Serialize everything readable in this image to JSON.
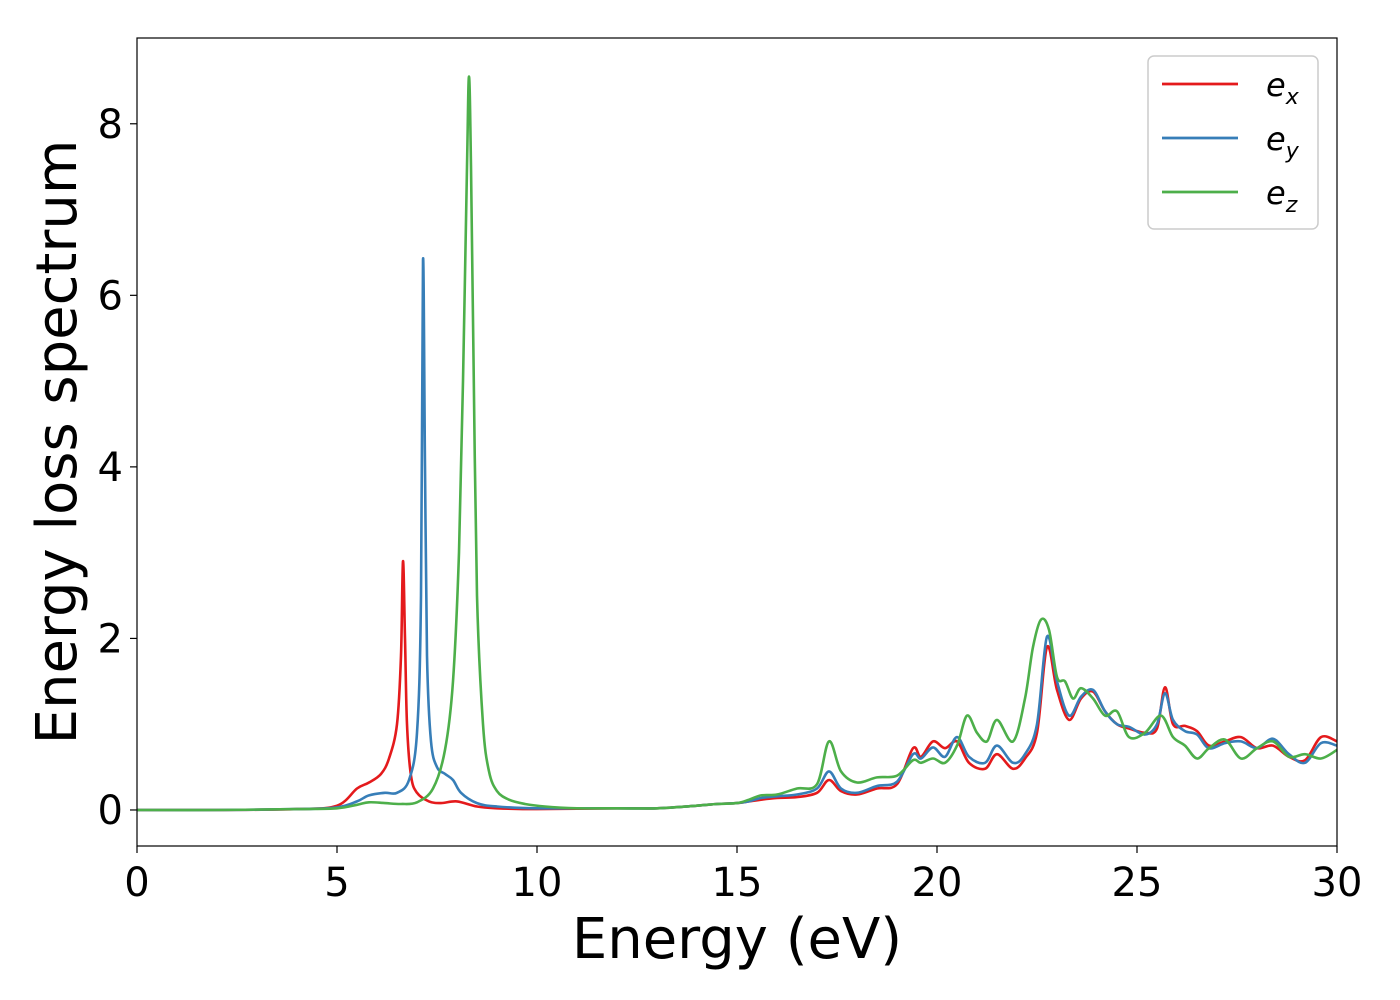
{
  "chart_data": {
    "type": "line",
    "title": "",
    "xlabel": "Energy (eV)",
    "ylabel": "Energy loss spectrum",
    "xlim": [
      0,
      30
    ],
    "ylim": [
      -0.42,
      9.0
    ],
    "xticks": [
      0,
      5,
      10,
      15,
      20,
      25,
      30
    ],
    "xtick_labels": [
      "0",
      "5",
      "10",
      "15",
      "20",
      "25",
      "30"
    ],
    "yticks": [
      0,
      2,
      4,
      6,
      8
    ],
    "ytick_labels": [
      "0",
      "2",
      "4",
      "6",
      "8"
    ],
    "grid": false,
    "legend_position": "top-right",
    "series": [
      {
        "name": "e_x",
        "base": "e",
        "sub": "x",
        "color": "#e41a1c",
        "x": [
          0,
          2,
          4,
          5,
          5.5,
          5.8,
          6.1,
          6.3,
          6.5,
          6.6,
          6.65,
          6.7,
          6.75,
          6.85,
          7.0,
          7.3,
          7.6,
          8.0,
          8.5,
          9.0,
          10,
          12,
          13,
          14,
          14.5,
          15,
          15.3,
          15.6,
          16,
          16.5,
          17,
          17.3,
          17.6,
          18,
          18.5,
          19,
          19.4,
          19.6,
          19.9,
          20.2,
          20.5,
          20.8,
          21.2,
          21.5,
          21.9,
          22.2,
          22.5,
          22.75,
          23.0,
          23.3,
          23.6,
          23.9,
          24.2,
          24.5,
          24.8,
          25.2,
          25.5,
          25.7,
          25.9,
          26.2,
          26.5,
          26.8,
          27.2,
          27.6,
          28.0,
          28.4,
          28.8,
          29.2,
          29.6,
          30
        ],
        "y": [
          0.0,
          0.0,
          0.01,
          0.05,
          0.25,
          0.32,
          0.42,
          0.6,
          1.0,
          1.8,
          2.9,
          2.0,
          1.0,
          0.4,
          0.2,
          0.1,
          0.08,
          0.1,
          0.04,
          0.02,
          0.01,
          0.02,
          0.02,
          0.05,
          0.07,
          0.08,
          0.1,
          0.12,
          0.14,
          0.15,
          0.2,
          0.35,
          0.22,
          0.18,
          0.25,
          0.3,
          0.72,
          0.62,
          0.8,
          0.72,
          0.8,
          0.55,
          0.48,
          0.65,
          0.48,
          0.6,
          0.9,
          1.9,
          1.4,
          1.05,
          1.3,
          1.38,
          1.15,
          1.0,
          0.95,
          0.9,
          0.95,
          1.43,
          1.0,
          0.98,
          0.92,
          0.75,
          0.8,
          0.85,
          0.72,
          0.75,
          0.62,
          0.58,
          0.85,
          0.8
        ]
      },
      {
        "name": "e_y",
        "base": "e",
        "sub": "y",
        "color": "#377eb8",
        "x": [
          0,
          2,
          4,
          5,
          5.5,
          5.8,
          6.2,
          6.5,
          6.8,
          7.0,
          7.1,
          7.15,
          7.2,
          7.25,
          7.35,
          7.5,
          7.7,
          7.9,
          8.1,
          8.5,
          9.0,
          10,
          12,
          13,
          14,
          14.5,
          15,
          15.3,
          15.6,
          16,
          16.5,
          17,
          17.3,
          17.6,
          18,
          18.5,
          19,
          19.4,
          19.6,
          19.9,
          20.2,
          20.5,
          20.8,
          21.2,
          21.5,
          21.9,
          22.2,
          22.5,
          22.75,
          23.0,
          23.3,
          23.6,
          23.9,
          24.2,
          24.5,
          24.8,
          25.2,
          25.5,
          25.7,
          25.9,
          26.2,
          26.5,
          26.8,
          27.2,
          27.6,
          28.0,
          28.4,
          28.8,
          29.2,
          29.6,
          30
        ],
        "y": [
          0.0,
          0.0,
          0.01,
          0.03,
          0.1,
          0.17,
          0.2,
          0.2,
          0.35,
          0.9,
          2.5,
          6.41,
          4.0,
          1.8,
          0.8,
          0.5,
          0.42,
          0.35,
          0.2,
          0.08,
          0.04,
          0.02,
          0.02,
          0.02,
          0.05,
          0.07,
          0.08,
          0.1,
          0.14,
          0.16,
          0.18,
          0.25,
          0.45,
          0.25,
          0.2,
          0.28,
          0.33,
          0.65,
          0.6,
          0.73,
          0.62,
          0.85,
          0.62,
          0.55,
          0.75,
          0.55,
          0.65,
          1.0,
          2.02,
          1.5,
          1.1,
          1.32,
          1.4,
          1.15,
          1.0,
          0.97,
          0.88,
          1.0,
          1.36,
          1.05,
          0.92,
          0.88,
          0.72,
          0.78,
          0.8,
          0.72,
          0.83,
          0.65,
          0.55,
          0.78,
          0.75
        ]
      },
      {
        "name": "e_z",
        "base": "e",
        "sub": "z",
        "color": "#4daf4a",
        "x": [
          0,
          2,
          4,
          5,
          5.5,
          5.8,
          6.2,
          6.6,
          7.0,
          7.4,
          7.7,
          7.9,
          8.05,
          8.15,
          8.25,
          8.3,
          8.35,
          8.42,
          8.5,
          8.65,
          8.8,
          9.0,
          9.3,
          9.7,
          10.2,
          11,
          12,
          13,
          14,
          14.5,
          15,
          15.3,
          15.6,
          16,
          16.5,
          17,
          17.3,
          17.6,
          18,
          18.5,
          19,
          19.4,
          19.6,
          19.9,
          20.2,
          20.5,
          20.75,
          21.0,
          21.25,
          21.5,
          21.9,
          22.2,
          22.4,
          22.6,
          22.8,
          23.0,
          23.2,
          23.4,
          23.6,
          23.9,
          24.2,
          24.5,
          24.8,
          25.2,
          25.6,
          25.9,
          26.2,
          26.5,
          26.8,
          27.2,
          27.6,
          28.0,
          28.4,
          28.8,
          29.2,
          29.6,
          30
        ],
        "y": [
          0.0,
          0.0,
          0.01,
          0.02,
          0.06,
          0.09,
          0.08,
          0.07,
          0.09,
          0.25,
          0.7,
          1.5,
          3.0,
          5.0,
          7.5,
          8.55,
          7.5,
          5.0,
          2.5,
          1.0,
          0.45,
          0.22,
          0.12,
          0.07,
          0.04,
          0.02,
          0.02,
          0.02,
          0.05,
          0.07,
          0.08,
          0.12,
          0.17,
          0.18,
          0.25,
          0.3,
          0.8,
          0.45,
          0.32,
          0.38,
          0.4,
          0.58,
          0.55,
          0.6,
          0.55,
          0.75,
          1.1,
          0.9,
          0.8,
          1.05,
          0.8,
          1.3,
          1.9,
          2.22,
          2.1,
          1.55,
          1.5,
          1.3,
          1.42,
          1.3,
          1.1,
          1.15,
          0.85,
          0.9,
          1.1,
          0.85,
          0.75,
          0.6,
          0.72,
          0.82,
          0.6,
          0.72,
          0.8,
          0.62,
          0.65,
          0.6,
          0.7
        ]
      }
    ]
  }
}
